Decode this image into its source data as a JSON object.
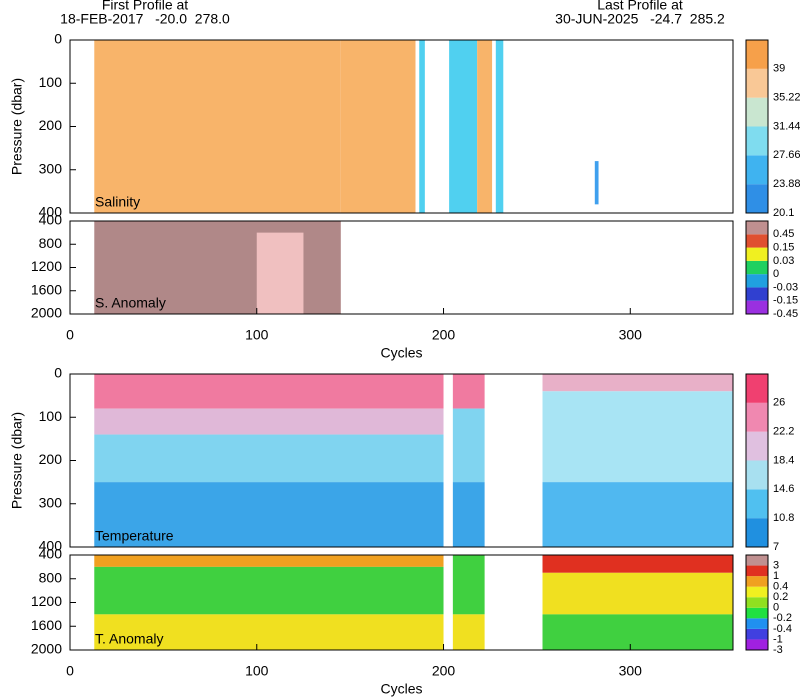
{
  "header": {
    "first_label": "First Profile at",
    "first_info": "18-FEB-2017   -20.0  278.0",
    "last_label": "Last Profile at",
    "last_info": "30-JUN-2025   -24.7  285.2"
  },
  "chart_data": [
    {
      "type": "heatmap",
      "label": "Salinity",
      "ylabel": "Pressure (dbar)",
      "xlim": [
        0,
        355
      ],
      "ylim": [
        400,
        0
      ],
      "yticks": [
        0,
        100,
        200,
        300,
        400
      ],
      "colorbar": {
        "ticks": [
          20.1,
          23.88,
          27.66,
          31.44,
          35.22,
          39
        ],
        "colors": [
          "#2f8fe6",
          "#3fb3f0",
          "#7fdcef",
          "#c9e6d0",
          "#f9c896",
          "#f6a04a"
        ]
      },
      "fields": [
        {
          "cycles": [
            13,
            145
          ],
          "pressure": [
            0,
            400
          ],
          "color": "#f8b46a"
        },
        {
          "cycles": [
            145,
            185
          ],
          "pressure": [
            0,
            400
          ],
          "color": "#f8b46a"
        },
        {
          "cycles": [
            187,
            190
          ],
          "pressure": [
            0,
            400
          ],
          "color": "#50d0f0"
        },
        {
          "cycles": [
            203,
            218
          ],
          "pressure": [
            0,
            400
          ],
          "color": "#50d0f0"
        },
        {
          "cycles": [
            218,
            226
          ],
          "pressure": [
            0,
            400
          ],
          "color": "#f8b46a"
        },
        {
          "cycles": [
            228,
            232
          ],
          "pressure": [
            0,
            400
          ],
          "color": "#50d0f0"
        },
        {
          "cycles": [
            281,
            283
          ],
          "pressure": [
            280,
            380
          ],
          "color": "#3fa0ee"
        }
      ]
    },
    {
      "type": "heatmap",
      "label": "S. Anomaly",
      "xlabel": "Cycles",
      "xlim": [
        0,
        355
      ],
      "xticks": [
        0,
        100,
        200,
        300
      ],
      "ylim": [
        2000,
        400
      ],
      "yticks": [
        400,
        800,
        1200,
        1600,
        2000
      ],
      "colorbar": {
        "ticks": [
          -0.45,
          -0.15,
          -0.03,
          0,
          0.03,
          0.15,
          0.45
        ],
        "colors": [
          "#9a30e0",
          "#3040d0",
          "#20a0e0",
          "#20d060",
          "#f0f020",
          "#e05030",
          "#c09090"
        ]
      },
      "fields": [
        {
          "cycles": [
            13,
            145
          ],
          "pressure": [
            400,
            2000
          ],
          "color": "#b08888"
        },
        {
          "cycles": [
            100,
            125
          ],
          "pressure": [
            600,
            2000
          ],
          "color": "#f0c0c0"
        }
      ]
    },
    {
      "type": "heatmap",
      "label": "Temperature",
      "ylabel": "Pressure (dbar)",
      "xlim": [
        0,
        355
      ],
      "ylim": [
        400,
        0
      ],
      "yticks": [
        0,
        100,
        200,
        300,
        400
      ],
      "colorbar": {
        "ticks": [
          7,
          10.8,
          14.6,
          18.4,
          22.2,
          26
        ],
        "colors": [
          "#2090e0",
          "#50c0f0",
          "#a8e0f0",
          "#e0c0e0",
          "#f088b0",
          "#f04070"
        ]
      },
      "fields": [
        {
          "cycles": [
            13,
            200
          ],
          "pressure": [
            0,
            80
          ],
          "color": "#f07aa0"
        },
        {
          "cycles": [
            13,
            200
          ],
          "pressure": [
            80,
            140
          ],
          "color": "#e0b8d8"
        },
        {
          "cycles": [
            13,
            200
          ],
          "pressure": [
            140,
            250
          ],
          "color": "#80d4f0"
        },
        {
          "cycles": [
            13,
            200
          ],
          "pressure": [
            250,
            400
          ],
          "color": "#3ba5e8"
        },
        {
          "cycles": [
            205,
            222
          ],
          "pressure": [
            0,
            80
          ],
          "color": "#f07aa0"
        },
        {
          "cycles": [
            205,
            222
          ],
          "pressure": [
            80,
            250
          ],
          "color": "#80d4f0"
        },
        {
          "cycles": [
            205,
            222
          ],
          "pressure": [
            250,
            400
          ],
          "color": "#3ba5e8"
        },
        {
          "cycles": [
            253,
            355
          ],
          "pressure": [
            0,
            40
          ],
          "color": "#e8b0c8"
        },
        {
          "cycles": [
            253,
            355
          ],
          "pressure": [
            40,
            250
          ],
          "color": "#a8e4f4"
        },
        {
          "cycles": [
            253,
            355
          ],
          "pressure": [
            250,
            400
          ],
          "color": "#50b8f0"
        }
      ]
    },
    {
      "type": "heatmap",
      "label": "T. Anomaly",
      "xlabel": "Cycles",
      "xlim": [
        0,
        355
      ],
      "xticks": [
        0,
        100,
        200,
        300
      ],
      "ylim": [
        2000,
        400
      ],
      "yticks": [
        400,
        800,
        1200,
        1600,
        2000
      ],
      "colorbar": {
        "ticks": [
          -3,
          -1,
          -0.4,
          -0.2,
          0,
          0.2,
          0.4,
          1,
          3
        ],
        "colors": [
          "#a020e0",
          "#4040e0",
          "#2090f0",
          "#20e040",
          "#90e020",
          "#f0f020",
          "#f0a020",
          "#e03020",
          "#c09090"
        ]
      },
      "fields": [
        {
          "cycles": [
            13,
            200
          ],
          "pressure": [
            400,
            600
          ],
          "color": "#f0a020"
        },
        {
          "cycles": [
            13,
            200
          ],
          "pressure": [
            600,
            1400
          ],
          "color": "#40d040"
        },
        {
          "cycles": [
            13,
            200
          ],
          "pressure": [
            1400,
            2000
          ],
          "color": "#f0e020"
        },
        {
          "cycles": [
            205,
            222
          ],
          "pressure": [
            400,
            1400
          ],
          "color": "#40d040"
        },
        {
          "cycles": [
            205,
            222
          ],
          "pressure": [
            1400,
            2000
          ],
          "color": "#f0e020"
        },
        {
          "cycles": [
            253,
            355
          ],
          "pressure": [
            400,
            700
          ],
          "color": "#e03020"
        },
        {
          "cycles": [
            253,
            355
          ],
          "pressure": [
            700,
            1400
          ],
          "color": "#f0e020"
        },
        {
          "cycles": [
            253,
            355
          ],
          "pressure": [
            1400,
            2000
          ],
          "color": "#40d040"
        }
      ]
    }
  ]
}
